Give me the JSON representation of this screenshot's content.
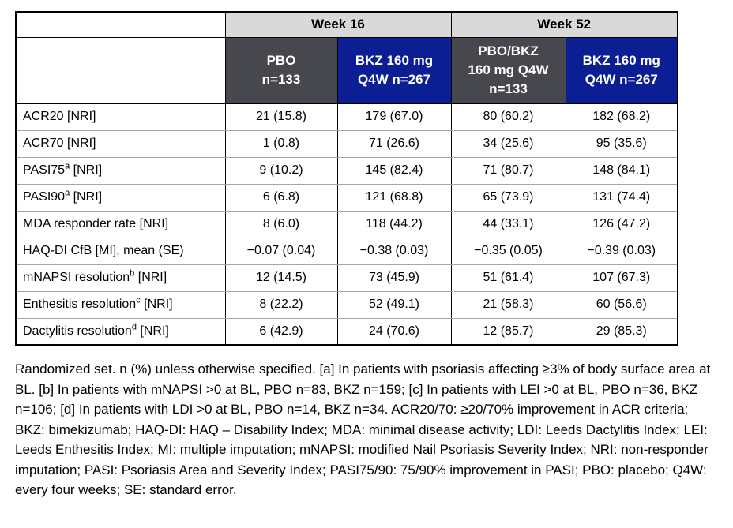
{
  "colors": {
    "week_header_bg": "#d9d9d9",
    "pbo_header_bg": "#46484d",
    "bkz_header_bg": "#0b1e94",
    "header_text": "#ffffff",
    "body_text": "#000000",
    "outer_border": "#000000",
    "row_divider": "#a6a6a6"
  },
  "table": {
    "week_headers": [
      "Week 16",
      "Week 52"
    ],
    "arm_columns": [
      {
        "style": "gray",
        "lines": [
          "PBO",
          "n=133"
        ]
      },
      {
        "style": "blue",
        "lines": [
          "BKZ 160 mg",
          "Q4W n=267"
        ]
      },
      {
        "style": "gray",
        "lines": [
          "PBO/BKZ",
          "160 mg Q4W",
          "n=133"
        ]
      },
      {
        "style": "blue",
        "lines": [
          "BKZ 160 mg",
          "Q4W n=267"
        ]
      }
    ],
    "rows": [
      {
        "label": "ACR20",
        "sup": "",
        "rest": " [NRI]",
        "values": [
          "21 (15.8)",
          "179 (67.0)",
          "80 (60.2)",
          "182 (68.2)"
        ]
      },
      {
        "label": "ACR70",
        "sup": "",
        "rest": " [NRI]",
        "values": [
          "1 (0.8)",
          "71 (26.6)",
          "34 (25.6)",
          "95 (35.6)"
        ]
      },
      {
        "label": "PASI75",
        "sup": "a",
        "rest": " [NRI]",
        "values": [
          "9 (10.2)",
          "145 (82.4)",
          "71 (80.7)",
          "148 (84.1)"
        ]
      },
      {
        "label": "PASI90",
        "sup": "a",
        "rest": " [NRI]",
        "values": [
          "6 (6.8)",
          "121 (68.8)",
          "65 (73.9)",
          "131 (74.4)"
        ]
      },
      {
        "label": "MDA responder rate",
        "sup": "",
        "rest": " [NRI]",
        "values": [
          "8 (6.0)",
          "118 (44.2)",
          "44 (33.1)",
          "126 (47.2)"
        ]
      },
      {
        "label": "HAQ-DI CfB [MI], mean (SE)",
        "sup": "",
        "rest": "",
        "values": [
          "−0.07 (0.04)",
          "−0.38 (0.03)",
          "−0.35 (0.05)",
          "−0.39 (0.03)"
        ]
      },
      {
        "label": "mNAPSI resolution",
        "sup": "b",
        "rest": " [NRI]",
        "values": [
          "12 (14.5)",
          "73 (45.9)",
          "51 (61.4)",
          "107 (67.3)"
        ]
      },
      {
        "label": "Enthesitis resolution",
        "sup": "c",
        "rest": " [NRI]",
        "values": [
          "8 (22.2)",
          "52 (49.1)",
          "21 (58.3)",
          "60 (56.6)"
        ]
      },
      {
        "label": "Dactylitis resolution",
        "sup": "d",
        "rest": " [NRI]",
        "values": [
          "6 (42.9)",
          "24 (70.6)",
          "12 (85.7)",
          "29 (85.3)"
        ]
      }
    ]
  },
  "footnote": "Randomized set. n (%) unless otherwise specified. [a] In patients with psoriasis affecting ≥3% of body surface area at BL. [b] In patients with mNAPSI >0 at BL, PBO n=83, BKZ n=159; [c] In patients with LEI >0 at BL, PBO n=36, BKZ n=106; [d] In patients with LDI >0 at BL, PBO n=14, BKZ n=34. ACR20/70: ≥20/70% improvement in ACR criteria; BKZ: bimekizumab; HAQ-DI: HAQ – Disability Index; MDA: minimal disease activity; LDI: Leeds Dactylitis Index; LEI: Leeds Enthesitis Index; MI: multiple imputation; mNAPSI: modified Nail Psoriasis Severity Index; NRI: non-responder imputation; PASI: Psoriasis Area and Severity Index; PASI75/90: 75/90% improvement in PASI; PBO: placebo; Q4W: every four weeks; SE: standard error."
}
